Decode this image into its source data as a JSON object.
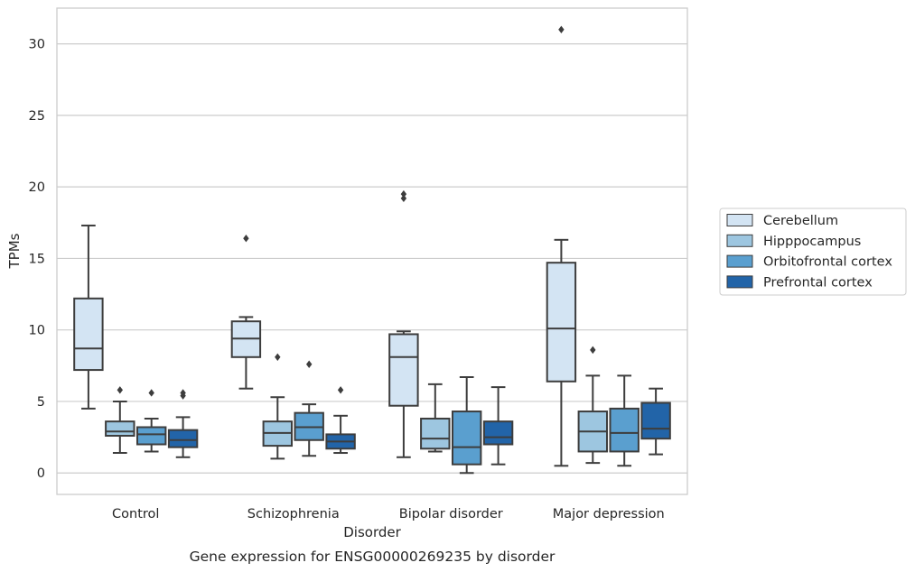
{
  "chart_data": {
    "type": "box",
    "title": "",
    "caption": "Gene expression for ENSG00000269235 by disorder",
    "xlabel": "Disorder",
    "ylabel": "TPMs",
    "ylim": [
      -1.5,
      32.5
    ],
    "yticks": [
      0,
      5,
      10,
      15,
      20,
      25,
      30
    ],
    "grid": "horizontal",
    "legend_position": "right",
    "categories": [
      "Control",
      "Schizophrenia",
      "Bipolar disorder",
      "Major depression"
    ],
    "series": [
      {
        "name": "Cerebellum",
        "color": "#d3e4f3",
        "boxes": [
          {
            "whislo": 4.5,
            "q1": 7.2,
            "med": 8.7,
            "q3": 12.2,
            "whishi": 17.3,
            "fliers": []
          },
          {
            "whislo": 5.9,
            "q1": 8.1,
            "med": 9.4,
            "q3": 10.6,
            "whishi": 10.9,
            "fliers": [
              16.4
            ]
          },
          {
            "whislo": 1.1,
            "q1": 4.7,
            "med": 8.1,
            "q3": 9.7,
            "whishi": 9.9,
            "fliers": [
              19.2,
              19.5
            ]
          },
          {
            "whislo": 0.5,
            "q1": 6.4,
            "med": 10.1,
            "q3": 14.7,
            "whishi": 16.3,
            "fliers": [
              31.0
            ]
          }
        ]
      },
      {
        "name": "Hipppocampus",
        "color": "#9dc6e0",
        "boxes": [
          {
            "whislo": 1.4,
            "q1": 2.6,
            "med": 2.9,
            "q3": 3.6,
            "whishi": 5.0,
            "fliers": [
              5.8
            ]
          },
          {
            "whislo": 1.0,
            "q1": 1.9,
            "med": 2.8,
            "q3": 3.6,
            "whishi": 5.3,
            "fliers": [
              8.1
            ]
          },
          {
            "whislo": 1.5,
            "q1": 1.7,
            "med": 2.4,
            "q3": 3.8,
            "whishi": 6.2,
            "fliers": []
          },
          {
            "whislo": 0.7,
            "q1": 1.5,
            "med": 2.9,
            "q3": 4.3,
            "whishi": 6.8,
            "fliers": [
              8.6
            ]
          }
        ]
      },
      {
        "name": "Orbitofrontal cortex",
        "color": "#5a9fcf",
        "boxes": [
          {
            "whislo": 1.5,
            "q1": 2.0,
            "med": 2.7,
            "q3": 3.2,
            "whishi": 3.8,
            "fliers": [
              5.6
            ]
          },
          {
            "whislo": 1.2,
            "q1": 2.3,
            "med": 3.2,
            "q3": 4.2,
            "whishi": 4.8,
            "fliers": [
              7.6
            ]
          },
          {
            "whislo": 0.0,
            "q1": 0.6,
            "med": 1.8,
            "q3": 4.3,
            "whishi": 6.7,
            "fliers": []
          },
          {
            "whislo": 0.5,
            "q1": 1.5,
            "med": 2.8,
            "q3": 4.5,
            "whishi": 6.8,
            "fliers": []
          }
        ]
      },
      {
        "name": "Prefrontal cortex",
        "color": "#2264a8",
        "boxes": [
          {
            "whislo": 1.1,
            "q1": 1.8,
            "med": 2.3,
            "q3": 3.0,
            "whishi": 3.9,
            "fliers": [
              5.4,
              5.6
            ]
          },
          {
            "whislo": 1.4,
            "q1": 1.7,
            "med": 2.2,
            "q3": 2.7,
            "whishi": 4.0,
            "fliers": [
              5.8
            ]
          },
          {
            "whislo": 0.6,
            "q1": 2.0,
            "med": 2.5,
            "q3": 3.6,
            "whishi": 6.0,
            "fliers": []
          },
          {
            "whislo": 1.3,
            "q1": 2.4,
            "med": 3.1,
            "q3": 4.9,
            "whishi": 5.9,
            "fliers": []
          }
        ]
      }
    ]
  }
}
